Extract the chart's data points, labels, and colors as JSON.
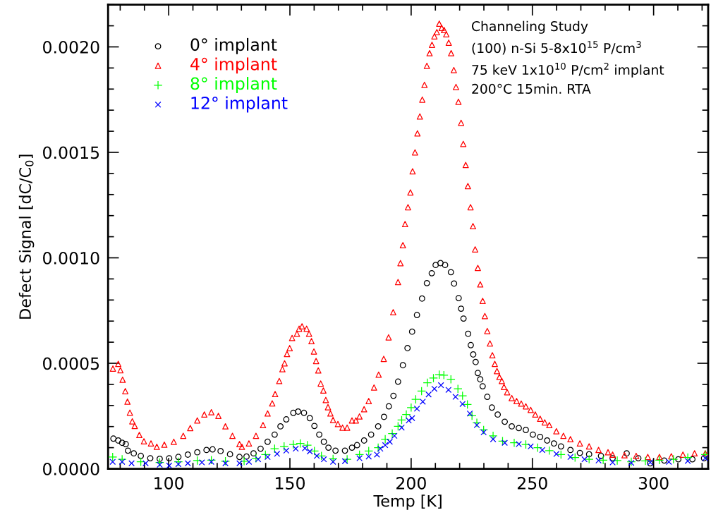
{
  "chart_data": {
    "type": "scatter",
    "xlabel": "Temp [K]",
    "ylabel": "Defect Signal [dC/C$_{0}$]",
    "xlim": [
      75,
      322.5
    ],
    "xticks": [
      100,
      150,
      200,
      250,
      300
    ],
    "ylim": [
      0,
      0.0022
    ],
    "yticks": [
      {
        "value": 0,
        "label": "0.0000"
      },
      {
        "value": 0.0005,
        "label": "0.0005"
      },
      {
        "value": 0.001,
        "label": "0.0010"
      },
      {
        "value": 0.0015,
        "label": "0.0015"
      },
      {
        "value": 0.002,
        "label": "0.0020"
      }
    ],
    "legend": "top left",
    "grid": false,
    "annotations": [
      "Channeling Study",
      "(100) n-Si 5-8x10$^{15}$ P/cm$^{3}$",
      "75 keV 1x10$^{10}$ P/cm$^{2}$ implant",
      "200°C 15min. RTA"
    ],
    "series": [
      {
        "name": "0° implant",
        "color": "#000000",
        "marker": "circle",
        "x": [
          77.2,
          79.2,
          80.8,
          82.3,
          83.2,
          85.6,
          88.5,
          92.4,
          96.3,
          100.2,
          104,
          107.9,
          111.8,
          115.6,
          118.1,
          121.4,
          125.3,
          129.2,
          132.1,
          135,
          137.9,
          140.8,
          143.7,
          146.1,
          148.5,
          151.4,
          153.4,
          155.8,
          158.2,
          160.1,
          162.1,
          164,
          165.9,
          168.8,
          172.7,
          175.6,
          177.7,
          180.6,
          183.5,
          186.4,
          188.8,
          190.8,
          192.7,
          194.6,
          196.6,
          198.5,
          200.4,
          202.4,
          204.5,
          206.5,
          208.5,
          210.1,
          212.1,
          214,
          216.4,
          217.7,
          219.6,
          220.6,
          221.6,
          223.5,
          224.6,
          225.6,
          226.6,
          227.5,
          228.5,
          229.5,
          231.4,
          233.3,
          235.7,
          238.6,
          241.5,
          244.4,
          247.3,
          250.2,
          253.2,
          256.1,
          258.9,
          261.8,
          265.7,
          269.6,
          273.4,
          278.3,
          283.1,
          288.9,
          293.7,
          298.6,
          304.4,
          310.2,
          316,
          320.8
        ],
        "values": [
          0.000143,
          0.000134,
          0.000123,
          0.000117,
          8.6e-05,
          7.3e-05,
          6.1e-05,
          5e-05,
          4.7e-05,
          5e-05,
          5.6e-05,
          6.7e-05,
          7.8e-05,
          8.9e-05,
          9.2e-05,
          8.4e-05,
          6.9e-05,
          5.6e-05,
          5.8e-05,
          7.3e-05,
          9.5e-05,
          0.000128,
          0.000162,
          0.000201,
          0.000234,
          0.000265,
          0.000271,
          0.000265,
          0.00024,
          0.000203,
          0.000162,
          0.000128,
          0.0001,
          8.6e-05,
          8.6e-05,
          0.0001,
          0.000112,
          0.000134,
          0.000162,
          0.000201,
          0.000246,
          0.000296,
          0.000346,
          0.000413,
          0.000491,
          0.000572,
          0.00065,
          0.000729,
          0.000807,
          0.00088,
          0.000927,
          0.000966,
          0.000975,
          0.000966,
          0.000932,
          0.000878,
          0.000809,
          0.000759,
          0.000712,
          0.00064,
          0.000586,
          0.000542,
          0.000506,
          0.000454,
          0.000424,
          0.000391,
          0.000341,
          0.00029,
          0.000257,
          0.000223,
          0.000201,
          0.000193,
          0.000184,
          0.000162,
          0.000151,
          0.000134,
          0.00012,
          0.000106,
          8.9e-05,
          7.5e-05,
          6.9e-05,
          6.1e-05,
          5e-05,
          7.3e-05,
          5e-05,
          2.6e-05,
          3.9e-05,
          4.5e-05,
          4.5e-05,
          5e-05
        ]
      },
      {
        "name": "4° implant",
        "color": "#ff0000",
        "marker": "triangle",
        "x": [
          77,
          79.2,
          80.1,
          81,
          82.1,
          83,
          84,
          85,
          86,
          87.9,
          89.8,
          92.7,
          95.1,
          98.2,
          102.1,
          106,
          108.9,
          111.8,
          114.7,
          117.6,
          120.5,
          123.4,
          126.3,
          129.2,
          130.2,
          133.1,
          136,
          138.9,
          140.8,
          142.7,
          143.9,
          145.6,
          146.9,
          147.8,
          148.8,
          149.9,
          150.9,
          152.9,
          153.8,
          155,
          156.9,
          157.9,
          158.9,
          159.9,
          160.8,
          161.7,
          162.7,
          163.8,
          164.8,
          165.7,
          166.7,
          167.8,
          169.8,
          171.7,
          173.6,
          175.6,
          177.2,
          178.7,
          180.6,
          182.5,
          184.7,
          186.6,
          188.7,
          190.7,
          192.6,
          194.6,
          195.6,
          196.6,
          197.5,
          198.7,
          199.7,
          200.6,
          201.6,
          202.6,
          203.6,
          204.6,
          205.5,
          206.5,
          207.6,
          208.6,
          209.6,
          210.6,
          211.6,
          212.6,
          213.6,
          214.5,
          215.5,
          216.5,
          217.6,
          218.5,
          219.5,
          220.6,
          221.5,
          222.5,
          223.4,
          224.5,
          225.5,
          226.4,
          227.5,
          228.5,
          229.5,
          230.4,
          231.4,
          232.5,
          233.5,
          234.5,
          235.4,
          236.4,
          237.4,
          238.3,
          239.6,
          241.5,
          243.5,
          245.4,
          247.3,
          249.3,
          251.2,
          253.2,
          255.1,
          257,
          259.9,
          262.8,
          265.7,
          269.6,
          273.4,
          277.3,
          281.2,
          283.1,
          288,
          292.8,
          297.6,
          302.4,
          307.3,
          312.1,
          316.9,
          321.3
        ],
        "values": [
          0.000475,
          0.000497,
          0.000467,
          0.000422,
          0.000368,
          0.000318,
          0.000266,
          0.000225,
          0.000203,
          0.00016,
          0.00013,
          0.00012,
          0.000104,
          0.000114,
          0.000128,
          0.000156,
          0.000193,
          0.000229,
          0.000257,
          0.000268,
          0.000251,
          0.000201,
          0.000156,
          0.000117,
          0.000104,
          0.00012,
          0.000156,
          0.000207,
          0.000262,
          0.00031,
          0.000354,
          0.000416,
          0.000472,
          0.0005,
          0.000544,
          0.000572,
          0.00062,
          0.00064,
          0.000664,
          0.000675,
          0.000664,
          0.00064,
          0.000605,
          0.000556,
          0.000511,
          0.000466,
          0.000404,
          0.000371,
          0.000326,
          0.000292,
          0.000262,
          0.000231,
          0.000212,
          0.000195,
          0.000195,
          0.000229,
          0.000229,
          0.000248,
          0.000282,
          0.000321,
          0.000385,
          0.000446,
          0.000521,
          0.000623,
          0.000742,
          0.000885,
          0.000975,
          0.00106,
          0.00116,
          0.00124,
          0.00131,
          0.00141,
          0.0015,
          0.00159,
          0.00167,
          0.00175,
          0.00182,
          0.00191,
          0.00197,
          0.00201,
          0.00205,
          0.00207,
          0.00211,
          0.00209,
          0.00208,
          0.00206,
          0.00202,
          0.00197,
          0.00189,
          0.00181,
          0.00174,
          0.00164,
          0.00154,
          0.00144,
          0.00134,
          0.00124,
          0.00115,
          0.00104,
          0.000952,
          0.000874,
          0.000796,
          0.000724,
          0.000653,
          0.000594,
          0.000538,
          0.000497,
          0.000463,
          0.000435,
          0.000416,
          0.000388,
          0.000363,
          0.000335,
          0.000321,
          0.000309,
          0.000296,
          0.000279,
          0.000257,
          0.000237,
          0.00022,
          0.000207,
          0.000178,
          0.000156,
          0.00014,
          0.00012,
          0.000106,
          8.9e-05,
          7.8e-05,
          6.7e-05,
          6.4e-05,
          6.1e-05,
          5.6e-05,
          5.6e-05,
          5.9e-05,
          6.7e-05,
          7.3e-05,
          7.3e-05
        ]
      },
      {
        "name": "8° implant",
        "color": "#00ff00",
        "marker": "plus",
        "x": [
          76.9,
          80.8,
          88.5,
          96.3,
          104,
          111.8,
          117.6,
          123.4,
          131.1,
          136,
          139.9,
          143.7,
          147.6,
          151.4,
          154.3,
          157.2,
          160.1,
          163,
          167.8,
          173.6,
          178.7,
          182.5,
          186.4,
          189.3,
          192.2,
          194.6,
          196.1,
          198,
          200,
          201.9,
          204.3,
          206.7,
          209.2,
          211.6,
          213.5,
          216.4,
          219.3,
          221.2,
          223.2,
          225.1,
          227.1,
          229.9,
          233.8,
          237.7,
          242.5,
          247.3,
          252.2,
          257,
          261.8,
          267.6,
          273.4,
          279.2,
          285,
          290.8,
          296.6,
          302.4,
          308.2,
          314.1,
          321.3
        ],
        "values": [
          5.6e-05,
          4.5e-05,
          3.3e-05,
          3e-05,
          3.3e-05,
          3.9e-05,
          4.1e-05,
          3.6e-05,
          3.6e-05,
          5e-05,
          6.7e-05,
          9.5e-05,
          0.000106,
          0.000115,
          0.00012,
          0.000112,
          8.4e-05,
          6.1e-05,
          4.7e-05,
          4.5e-05,
          6.7e-05,
          8.4e-05,
          0.0001,
          0.00014,
          0.000167,
          0.000201,
          0.000231,
          0.000257,
          0.00029,
          0.000329,
          0.000368,
          0.000408,
          0.00043,
          0.000446,
          0.000444,
          0.000424,
          0.000379,
          0.000346,
          0.000305,
          0.000251,
          0.000218,
          0.000184,
          0.000156,
          0.000131,
          0.000123,
          0.000115,
          0.0001,
          8.6e-05,
          6.7e-05,
          5.3e-05,
          4.5e-05,
          4.1e-05,
          3.9e-05,
          3.3e-05,
          3.7e-05,
          4.1e-05,
          4.5e-05,
          5.3e-05,
          6.7e-05
        ]
      },
      {
        "name": "12° implant",
        "color": "#0000ff",
        "marker": "cross",
        "x": [
          76.9,
          80.8,
          84.7,
          90.5,
          96.3,
          100.2,
          104,
          107.9,
          113.7,
          117.6,
          123.4,
          129.2,
          133.1,
          136.9,
          140.8,
          144.7,
          148.5,
          152.4,
          156.2,
          158.2,
          161.1,
          164,
          167.8,
          172.7,
          178.7,
          182.5,
          185.9,
          187.3,
          189.3,
          191.2,
          193.1,
          196.1,
          199,
          200.4,
          202.4,
          204.8,
          207.2,
          209.6,
          212.3,
          215.4,
          218.3,
          221.2,
          224.2,
          227.1,
          229.9,
          233.8,
          238.6,
          244.4,
          249.3,
          254.1,
          259.9,
          265.7,
          271.5,
          277.3,
          283.1,
          290.8,
          298.6,
          306.3,
          314.1,
          321.3
        ],
        "values": [
          3.3e-05,
          3.3e-05,
          2.6e-05,
          2.6e-05,
          1.9e-05,
          1.5e-05,
          2.2e-05,
          2.6e-05,
          3e-05,
          3.3e-05,
          2.6e-05,
          2.6e-05,
          3.3e-05,
          4.5e-05,
          5.6e-05,
          7.1e-05,
          8.6e-05,
          9.5e-05,
          9.7e-05,
          8.2e-05,
          6.1e-05,
          4.5e-05,
          3.3e-05,
          3.6e-05,
          5e-05,
          5.8e-05,
          6.7e-05,
          9.5e-05,
          0.000112,
          0.000128,
          0.000156,
          0.000195,
          0.000229,
          0.00024,
          0.000285,
          0.000318,
          0.000352,
          0.000379,
          0.000396,
          0.000374,
          0.000341,
          0.000307,
          0.000262,
          0.000207,
          0.000173,
          0.00014,
          0.000123,
          0.000117,
          0.000106,
          8.9e-05,
          7e-05,
          5.6e-05,
          4.5e-05,
          3.9e-05,
          3e-05,
          2.8e-05,
          3e-05,
          3.3e-05,
          3.7e-05,
          5e-05
        ]
      }
    ]
  }
}
